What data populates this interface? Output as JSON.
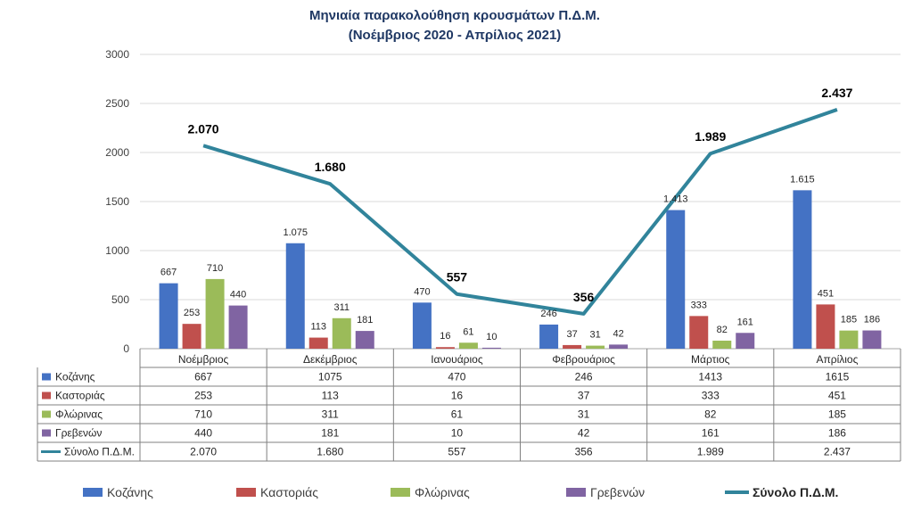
{
  "chart_data": {
    "type": "bar",
    "title": "Μηνιαία παρακολούθηση κρουσμάτων Π.Δ.Μ.",
    "subtitle": "(Νοέμβριος 2020 - Απρίλιος 2021)",
    "categories": [
      "Νοέμβριος",
      "Δεκέμβριος",
      "Ιανουάριος",
      "Φεβρουάριος",
      "Μάρτιος",
      "Απρίλιος"
    ],
    "ylim": [
      0,
      3000
    ],
    "yticks": [
      "0",
      "500",
      "1000",
      "1500",
      "2000",
      "2500",
      "3000"
    ],
    "grid": true,
    "legend_position": "bottom",
    "series": [
      {
        "name": "Κοζάνης",
        "type": "bar",
        "color": "#4472C4",
        "values": [
          667,
          1075,
          470,
          246,
          1413,
          1615
        ],
        "labels": [
          "667",
          "1.075",
          "470",
          "246",
          "1.413",
          "1.615"
        ],
        "table": [
          "667",
          "1075",
          "470",
          "246",
          "1413",
          "1615"
        ]
      },
      {
        "name": "Καστοριάς",
        "type": "bar",
        "color": "#C0504D",
        "values": [
          253,
          113,
          16,
          37,
          333,
          451
        ],
        "labels": [
          "253",
          "113",
          "16",
          "37",
          "333",
          "451"
        ],
        "table": [
          "253",
          "113",
          "16",
          "37",
          "333",
          "451"
        ]
      },
      {
        "name": "Φλώρινας",
        "type": "bar",
        "color": "#9BBB59",
        "values": [
          710,
          311,
          61,
          31,
          82,
          185
        ],
        "labels": [
          "710",
          "311",
          "61",
          "31",
          "82",
          "185"
        ],
        "table": [
          "710",
          "311",
          "61",
          "31",
          "82",
          "185"
        ]
      },
      {
        "name": "Γρεβενών",
        "type": "bar",
        "color": "#8064A2",
        "values": [
          440,
          181,
          10,
          42,
          161,
          186
        ],
        "labels": [
          "440",
          "181",
          "10",
          "42",
          "161",
          "186"
        ],
        "table": [
          "440",
          "181",
          "10",
          "42",
          "161",
          "186"
        ]
      },
      {
        "name": "Σύνολο Π.Δ.Μ.",
        "type": "line",
        "color": "#31849B",
        "values": [
          2070,
          1680,
          557,
          356,
          1989,
          2437
        ],
        "labels": [
          "2.070",
          "1.680",
          "557",
          "356",
          "1.989",
          "2.437"
        ],
        "table": [
          "2.070",
          "1.680",
          "557",
          "356",
          "1.989",
          "2.437"
        ]
      }
    ]
  }
}
